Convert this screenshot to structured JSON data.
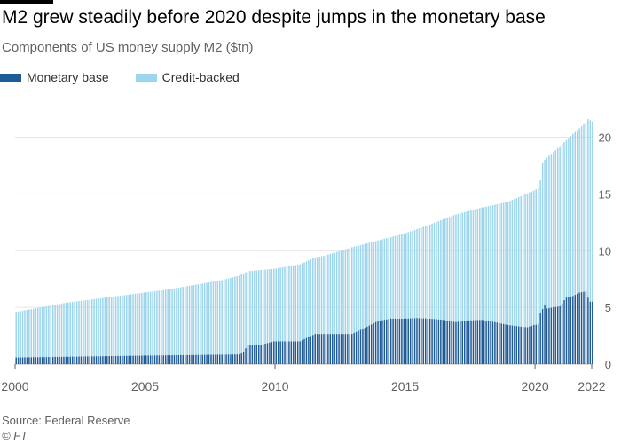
{
  "header": {
    "title": "M2 grew steadily before 2020 despite jumps in the monetary base",
    "subtitle": "Components of US money supply M2 ($tn)"
  },
  "colors": {
    "monetary_base": "#1e5a96",
    "credit_backed": "#9dd5ec",
    "grid": "#e6e6e6",
    "axis": "#66605c"
  },
  "footer": {
    "source": "Source: Federal Reserve",
    "credit": "© FT"
  },
  "chart_data": {
    "type": "bar",
    "stacked": true,
    "frequency": "monthly",
    "x_start": "2000-01",
    "x_end": "2022-03",
    "xticks": [
      "2000",
      "2005",
      "2010",
      "2015",
      "2020",
      "2022"
    ],
    "ylim": [
      0,
      22
    ],
    "yticks": [
      0,
      5,
      10,
      15,
      20
    ],
    "grid": true,
    "y_axis_side": "right",
    "legend_position": "top-left",
    "series": [
      {
        "name": "Monetary base",
        "color": "#1e5a96",
        "anchors": [
          [
            "2000-01",
            0.58
          ],
          [
            "2005-01",
            0.75
          ],
          [
            "2008-08",
            0.85
          ],
          [
            "2008-10",
            1.1
          ],
          [
            "2008-12",
            1.7
          ],
          [
            "2009-06",
            1.7
          ],
          [
            "2009-12",
            2.0
          ],
          [
            "2010-12",
            2.0
          ],
          [
            "2011-03",
            2.3
          ],
          [
            "2011-07",
            2.65
          ],
          [
            "2012-12",
            2.65
          ],
          [
            "2013-06",
            3.2
          ],
          [
            "2013-12",
            3.8
          ],
          [
            "2014-06",
            4.0
          ],
          [
            "2014-12",
            4.0
          ],
          [
            "2015-06",
            4.05
          ],
          [
            "2015-12",
            4.0
          ],
          [
            "2016-06",
            3.9
          ],
          [
            "2016-12",
            3.7
          ],
          [
            "2017-06",
            3.85
          ],
          [
            "2017-12",
            3.9
          ],
          [
            "2018-06",
            3.7
          ],
          [
            "2018-12",
            3.45
          ],
          [
            "2019-06",
            3.3
          ],
          [
            "2019-09",
            3.25
          ],
          [
            "2019-12",
            3.45
          ],
          [
            "2020-02",
            3.5
          ],
          [
            "2020-03",
            4.5
          ],
          [
            "2020-05",
            5.2
          ],
          [
            "2020-06",
            4.9
          ],
          [
            "2020-12",
            5.1
          ],
          [
            "2021-03",
            5.9
          ],
          [
            "2021-06",
            6.0
          ],
          [
            "2021-09",
            6.3
          ],
          [
            "2021-12",
            6.4
          ],
          [
            "2022-01",
            5.85
          ],
          [
            "2022-02",
            5.5
          ],
          [
            "2022-03",
            5.5
          ]
        ]
      },
      {
        "name": "Credit-backed",
        "color": "#9dd5ec",
        "total_anchors": [
          [
            "2000-01",
            4.6
          ],
          [
            "2001-12",
            5.4
          ],
          [
            "2003-12",
            6.0
          ],
          [
            "2005-12",
            6.6
          ],
          [
            "2007-12",
            7.4
          ],
          [
            "2008-08",
            7.8
          ],
          [
            "2008-12",
            8.2
          ],
          [
            "2009-12",
            8.4
          ],
          [
            "2010-12",
            8.8
          ],
          [
            "2011-07",
            9.4
          ],
          [
            "2011-12",
            9.6
          ],
          [
            "2012-12",
            10.3
          ],
          [
            "2013-12",
            10.9
          ],
          [
            "2014-12",
            11.5
          ],
          [
            "2015-12",
            12.3
          ],
          [
            "2016-12",
            13.2
          ],
          [
            "2017-12",
            13.8
          ],
          [
            "2018-12",
            14.3
          ],
          [
            "2019-12",
            15.3
          ],
          [
            "2020-02",
            15.5
          ],
          [
            "2020-03",
            16.2
          ],
          [
            "2020-04",
            17.8
          ],
          [
            "2020-06",
            18.2
          ],
          [
            "2020-12",
            19.2
          ],
          [
            "2021-06",
            20.3
          ],
          [
            "2021-12",
            21.3
          ],
          [
            "2022-01",
            21.6
          ],
          [
            "2022-03",
            21.4
          ]
        ]
      }
    ]
  }
}
